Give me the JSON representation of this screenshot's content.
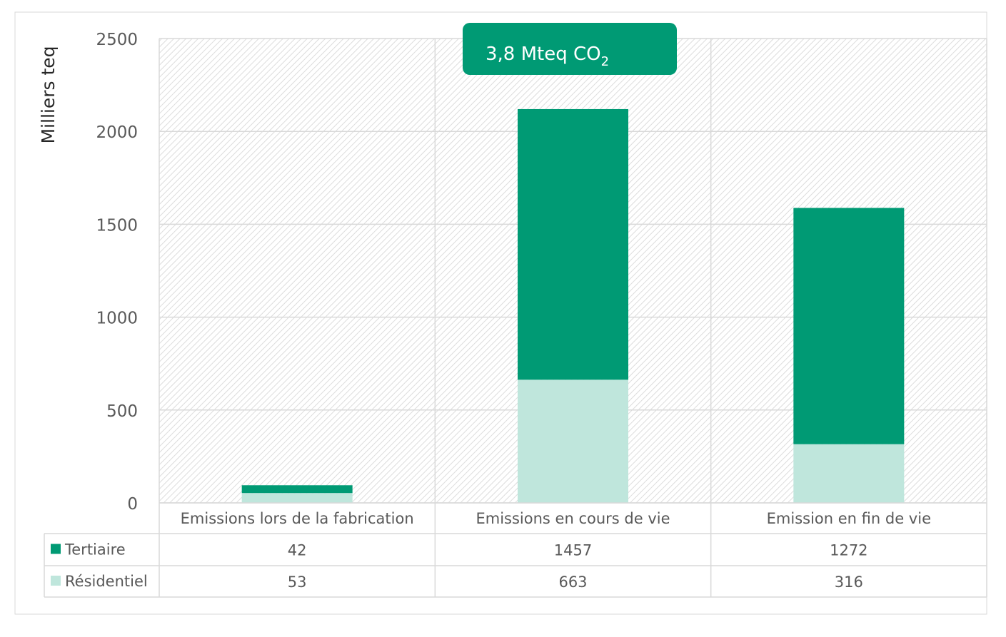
{
  "chart_data": {
    "type": "bar",
    "stacked": true,
    "ylabel": "Milliers teq",
    "ylim": [
      0,
      2500
    ],
    "yticks": [
      "0",
      "500",
      "1000",
      "1500",
      "2000",
      "2500"
    ],
    "categories": [
      "Emissions lors de la fabrication",
      "Emissions en cours de vie",
      "Emission en fin de vie"
    ],
    "series": [
      {
        "name": "Résidentiel",
        "values": [
          53,
          663,
          316
        ],
        "color": "#bfe6dc"
      },
      {
        "name": "Tertiaire",
        "values": [
          42,
          1457,
          1272
        ],
        "color": "#009a74"
      }
    ],
    "data_table": true,
    "legend_placement": "data-table-rows",
    "grid": true,
    "annotation": {
      "main": "3,8 Mteq CO",
      "subscript": "2",
      "color": "#009a74"
    }
  }
}
